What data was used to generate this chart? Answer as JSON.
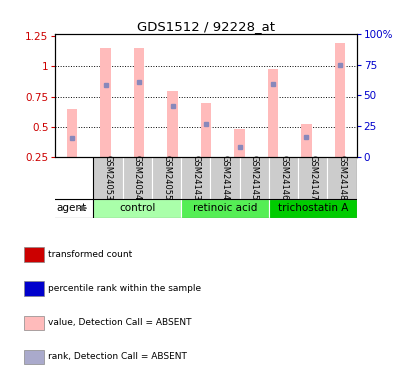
{
  "title": "GDS1512 / 92228_at",
  "samples": [
    "GSM24053",
    "GSM24054",
    "GSM24055",
    "GSM24143",
    "GSM24144",
    "GSM24145",
    "GSM24146",
    "GSM24147",
    "GSM24148"
  ],
  "pink_bar_heights": [
    0.65,
    1.15,
    1.15,
    0.8,
    0.7,
    0.48,
    0.98,
    0.52,
    1.19
  ],
  "blue_dot_values": [
    0.41,
    0.85,
    0.875,
    0.67,
    0.525,
    0.33,
    0.855,
    0.42,
    1.01
  ],
  "groups": [
    {
      "label": "control",
      "start": 0,
      "end": 3,
      "color": "#aaffaa"
    },
    {
      "label": "retinoic acid",
      "start": 3,
      "end": 6,
      "color": "#55ee55"
    },
    {
      "label": "trichostatin A",
      "start": 6,
      "end": 9,
      "color": "#00cc00"
    }
  ],
  "ylim_left": [
    0.25,
    1.27
  ],
  "ylim_right": [
    0,
    100
  ],
  "yticks_left": [
    0.25,
    0.5,
    0.75,
    1.0,
    1.25
  ],
  "ytick_labels_left": [
    "0.25",
    "0.5",
    "0.75",
    "1",
    "1.25"
  ],
  "yticks_right": [
    0,
    25,
    50,
    75,
    100
  ],
  "ytick_labels_right": [
    "0",
    "25",
    "50",
    "75",
    "100%"
  ],
  "left_axis_color": "#cc0000",
  "right_axis_color": "#0000cc",
  "pink_bar_color": "#ffbbbb",
  "blue_dot_color": "#8888bb",
  "bar_width": 0.32,
  "grid_yticks": [
    0.5,
    0.75,
    1.0
  ],
  "legend_items": [
    {
      "color": "#cc0000",
      "label": "transformed count"
    },
    {
      "color": "#0000cc",
      "label": "percentile rank within the sample"
    },
    {
      "color": "#ffbbbb",
      "label": "value, Detection Call = ABSENT"
    },
    {
      "color": "#aaaacc",
      "label": "rank, Detection Call = ABSENT"
    }
  ],
  "agent_label": "agent",
  "bg_color": "#ffffff",
  "plot_bg": "#ffffff",
  "header_bg": "#cccccc"
}
